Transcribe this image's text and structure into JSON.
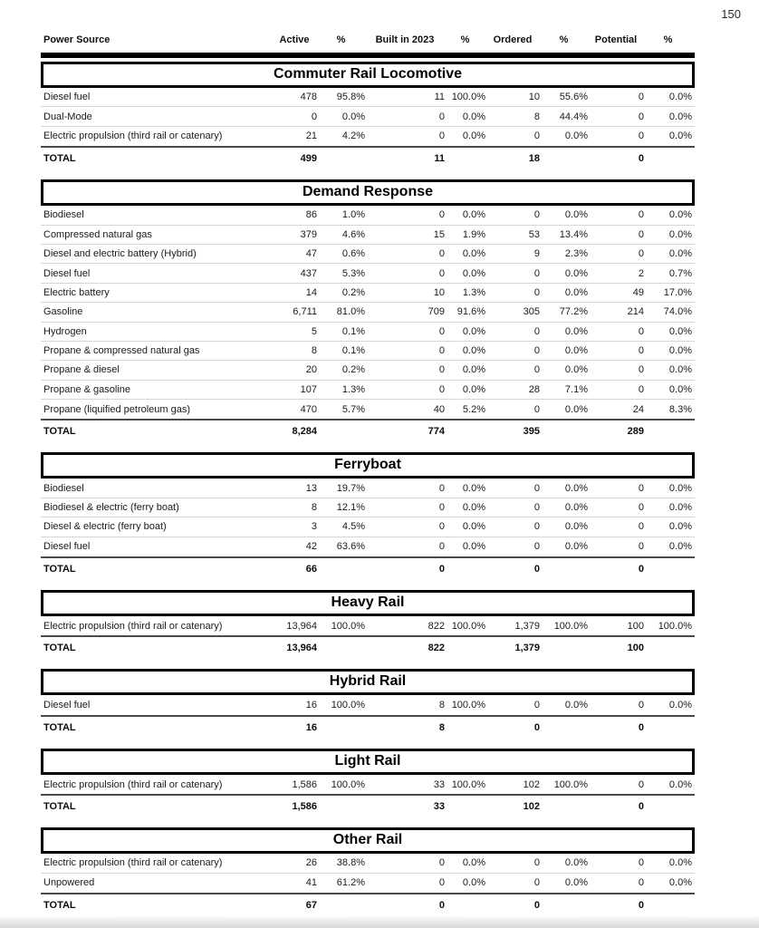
{
  "page": {
    "number": "150"
  },
  "table": {
    "columns": [
      "Power Source",
      "Active",
      "%",
      "Built in 2023",
      "%",
      "Ordered",
      "%",
      "Potential",
      "%"
    ],
    "total_label": "TOTAL",
    "sections": [
      {
        "title": "Commuter Rail Locomotive",
        "rows": [
          {
            "label": "Diesel fuel",
            "values": [
              "478",
              "95.8%",
              "11",
              "100.0%",
              "10",
              "55.6%",
              "0",
              "0.0%"
            ]
          },
          {
            "label": "Dual-Mode",
            "values": [
              "0",
              "0.0%",
              "0",
              "0.0%",
              "8",
              "44.4%",
              "0",
              "0.0%"
            ]
          },
          {
            "label": "Electric propulsion (third rail or catenary)",
            "values": [
              "21",
              "4.2%",
              "0",
              "0.0%",
              "0",
              "0.0%",
              "0",
              "0.0%"
            ]
          }
        ],
        "total": [
          "499",
          "",
          "11",
          "",
          "18",
          "",
          "0",
          ""
        ]
      },
      {
        "title": "Demand Response",
        "rows": [
          {
            "label": "Biodiesel",
            "values": [
              "86",
              "1.0%",
              "0",
              "0.0%",
              "0",
              "0.0%",
              "0",
              "0.0%"
            ]
          },
          {
            "label": "Compressed natural gas",
            "values": [
              "379",
              "4.6%",
              "15",
              "1.9%",
              "53",
              "13.4%",
              "0",
              "0.0%"
            ]
          },
          {
            "label": "Diesel and electric battery (Hybrid)",
            "values": [
              "47",
              "0.6%",
              "0",
              "0.0%",
              "9",
              "2.3%",
              "0",
              "0.0%"
            ]
          },
          {
            "label": "Diesel fuel",
            "values": [
              "437",
              "5.3%",
              "0",
              "0.0%",
              "0",
              "0.0%",
              "2",
              "0.7%"
            ]
          },
          {
            "label": "Electric battery",
            "values": [
              "14",
              "0.2%",
              "10",
              "1.3%",
              "0",
              "0.0%",
              "49",
              "17.0%"
            ]
          },
          {
            "label": "Gasoline",
            "values": [
              "6,711",
              "81.0%",
              "709",
              "91.6%",
              "305",
              "77.2%",
              "214",
              "74.0%"
            ]
          },
          {
            "label": "Hydrogen",
            "values": [
              "5",
              "0.1%",
              "0",
              "0.0%",
              "0",
              "0.0%",
              "0",
              "0.0%"
            ]
          },
          {
            "label": "Propane & compressed natural gas",
            "values": [
              "8",
              "0.1%",
              "0",
              "0.0%",
              "0",
              "0.0%",
              "0",
              "0.0%"
            ]
          },
          {
            "label": "Propane & diesel",
            "values": [
              "20",
              "0.2%",
              "0",
              "0.0%",
              "0",
              "0.0%",
              "0",
              "0.0%"
            ]
          },
          {
            "label": "Propane & gasoline",
            "values": [
              "107",
              "1.3%",
              "0",
              "0.0%",
              "28",
              "7.1%",
              "0",
              "0.0%"
            ]
          },
          {
            "label": "Propane (liquified petroleum gas)",
            "values": [
              "470",
              "5.7%",
              "40",
              "5.2%",
              "0",
              "0.0%",
              "24",
              "8.3%"
            ]
          }
        ],
        "total": [
          "8,284",
          "",
          "774",
          "",
          "395",
          "",
          "289",
          ""
        ]
      },
      {
        "title": "Ferryboat",
        "rows": [
          {
            "label": "Biodiesel",
            "values": [
              "13",
              "19.7%",
              "0",
              "0.0%",
              "0",
              "0.0%",
              "0",
              "0.0%"
            ]
          },
          {
            "label": "Biodiesel & electric (ferry boat)",
            "values": [
              "8",
              "12.1%",
              "0",
              "0.0%",
              "0",
              "0.0%",
              "0",
              "0.0%"
            ]
          },
          {
            "label": "Diesel & electric (ferry boat)",
            "values": [
              "3",
              "4.5%",
              "0",
              "0.0%",
              "0",
              "0.0%",
              "0",
              "0.0%"
            ]
          },
          {
            "label": "Diesel fuel",
            "values": [
              "42",
              "63.6%",
              "0",
              "0.0%",
              "0",
              "0.0%",
              "0",
              "0.0%"
            ]
          }
        ],
        "total": [
          "66",
          "",
          "0",
          "",
          "0",
          "",
          "0",
          ""
        ]
      },
      {
        "title": "Heavy Rail",
        "rows": [
          {
            "label": "Electric propulsion (third rail or catenary)",
            "values": [
              "13,964",
              "100.0%",
              "822",
              "100.0%",
              "1,379",
              "100.0%",
              "100",
              "100.0%"
            ]
          }
        ],
        "total": [
          "13,964",
          "",
          "822",
          "",
          "1,379",
          "",
          "100",
          ""
        ]
      },
      {
        "title": "Hybrid Rail",
        "rows": [
          {
            "label": "Diesel fuel",
            "values": [
              "16",
              "100.0%",
              "8",
              "100.0%",
              "0",
              "0.0%",
              "0",
              "0.0%"
            ]
          }
        ],
        "total": [
          "16",
          "",
          "8",
          "",
          "0",
          "",
          "0",
          ""
        ]
      },
      {
        "title": "Light Rail",
        "rows": [
          {
            "label": "Electric propulsion (third rail or catenary)",
            "values": [
              "1,586",
              "100.0%",
              "33",
              "100.0%",
              "102",
              "100.0%",
              "0",
              "0.0%"
            ]
          }
        ],
        "total": [
          "1,586",
          "",
          "33",
          "",
          "102",
          "",
          "0",
          ""
        ]
      },
      {
        "title": "Other Rail",
        "rows": [
          {
            "label": "Electric propulsion (third rail or catenary)",
            "values": [
              "26",
              "38.8%",
              "0",
              "0.0%",
              "0",
              "0.0%",
              "0",
              "0.0%"
            ]
          },
          {
            "label": "Unpowered",
            "values": [
              "41",
              "61.2%",
              "0",
              "0.0%",
              "0",
              "0.0%",
              "0",
              "0.0%"
            ]
          }
        ],
        "total": [
          "67",
          "",
          "0",
          "",
          "0",
          "",
          "0",
          ""
        ]
      }
    ]
  }
}
